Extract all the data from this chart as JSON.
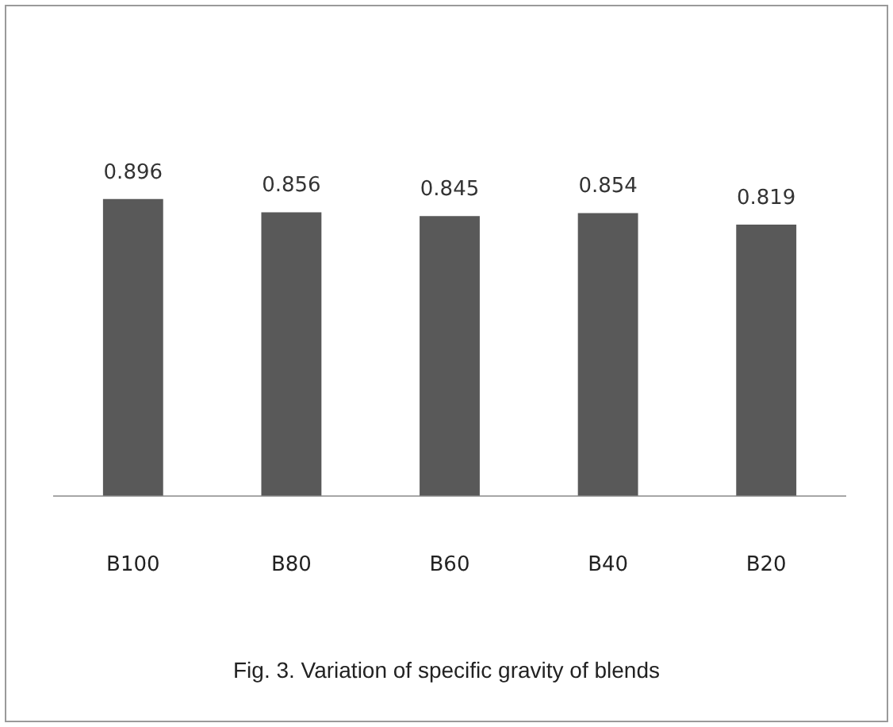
{
  "chart_data": {
    "type": "bar",
    "categories": [
      "B100",
      "B80",
      "B60",
      "B40",
      "B20"
    ],
    "values": [
      0.896,
      0.856,
      0.845,
      0.854,
      0.819
    ],
    "color": "#595959",
    "data_labels": true,
    "grid": false,
    "legend": false,
    "tick_labels": "x",
    "annotations": [
      "Fig. 3. Variation of specific gravity of blends"
    ]
  }
}
